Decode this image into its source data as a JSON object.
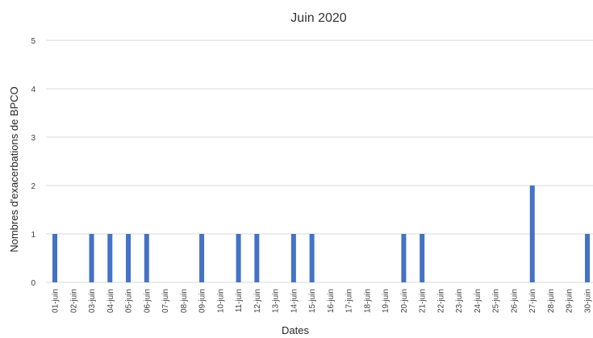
{
  "chart_data": {
    "type": "bar",
    "title": "Juin 2020",
    "xlabel": "Dates",
    "ylabel": "Nombres d'exacerbations de BPCO",
    "ylim": [
      0,
      5
    ],
    "yticks": [
      0,
      1,
      2,
      3,
      4,
      5
    ],
    "grid": true,
    "color": "#4472C4",
    "categories": [
      "01-juin",
      "02-juin",
      "03-juin",
      "04-juin",
      "05-juin",
      "06-juin",
      "07-juin",
      "08-juin",
      "09-juin",
      "10-juin",
      "11-juin",
      "12-juin",
      "13-juin",
      "14-juin",
      "15-juin",
      "16-juin",
      "17-juin",
      "18-juin",
      "19-juin",
      "20-juin",
      "21-juin",
      "22-juin",
      "23-juin",
      "24-juin",
      "25-juin",
      "26-juin",
      "27-juin",
      "28-juin",
      "29-juin",
      "30-juin"
    ],
    "values": [
      1,
      0,
      1,
      1,
      1,
      1,
      0,
      0,
      1,
      0,
      1,
      1,
      0,
      1,
      1,
      0,
      0,
      0,
      0,
      1,
      1,
      0,
      0,
      0,
      0,
      0,
      2,
      0,
      0,
      1
    ]
  }
}
